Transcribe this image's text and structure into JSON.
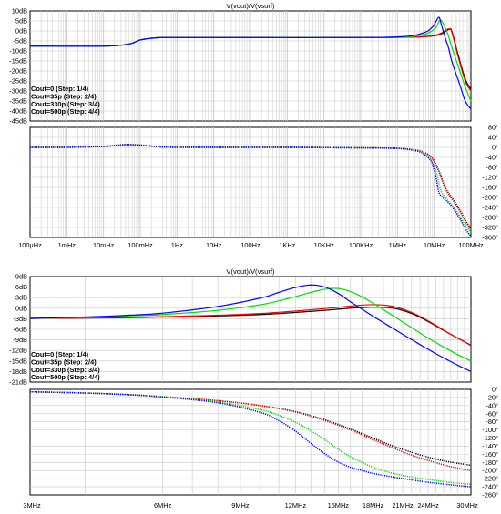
{
  "colors": {
    "trace0": "#000000",
    "trace35p": "#ff0000",
    "trace330p": "#00e000",
    "trace500p": "#0000ff",
    "grid": "#c8c8c8",
    "background": "#ffffff"
  },
  "chart_data": [
    {
      "type": "line",
      "title": "V(vout)/V(vsurf)",
      "panel": "wideband-magnitude",
      "x_scale": "log",
      "xlim": [
        "100µHz",
        "100MHz"
      ],
      "xticks": [
        "100µHz",
        "1mHz",
        "10mHz",
        "100mHz",
        "1Hz",
        "10Hz",
        "100Hz",
        "1KHz",
        "10KHz",
        "100KHz",
        "1MHz",
        "10MHz",
        "100MHz"
      ],
      "ylim": [
        -45,
        10
      ],
      "yticks": [
        "10dB",
        "5dB",
        "0dB",
        "-5dB",
        "-10dB",
        "-15dB",
        "-20dB",
        "-25dB",
        "-30dB",
        "-35dB",
        "-40dB",
        "-45dB"
      ],
      "legend_position": "bottom-left",
      "legend": [
        "Cout=0  (Step: 1/4)",
        "Cout=35p  (Step: 2/4)",
        "Cout=330p  (Step: 3/4)",
        "Cout=500p  (Step: 4/4)"
      ],
      "series": [
        {
          "name": "Cout=0  (Step: 1/4)",
          "x": [
            0.0001,
            0.01,
            0.05,
            0.1,
            0.3,
            1,
            100,
            10000,
            1000000,
            5000000,
            10000000,
            15000000,
            20000000,
            25000000,
            30000000,
            45000000,
            70000000,
            100000000
          ],
          "y": [
            -7.6,
            -7.6,
            -6.5,
            -4.5,
            -3.4,
            -3.3,
            -3.3,
            -3.3,
            -3.2,
            -2.9,
            -2.4,
            -1.6,
            -0.3,
            0.7,
            0,
            -12,
            -24,
            -29
          ]
        },
        {
          "name": "Cout=35p  (Step: 2/4)",
          "x": [
            0.0001,
            0.01,
            0.05,
            0.1,
            0.3,
            1,
            100,
            10000,
            1000000,
            5000000,
            10000000,
            15000000,
            20000000,
            25000000,
            30000000,
            45000000,
            70000000,
            100000000
          ],
          "y": [
            -7.6,
            -7.6,
            -6.5,
            -4.5,
            -3.4,
            -3.3,
            -3.3,
            -3.3,
            -3.2,
            -2.8,
            -2.2,
            -1.2,
            0.2,
            1,
            -0.5,
            -13,
            -25,
            -30
          ]
        },
        {
          "name": "Cout=330p  (Step: 3/4)",
          "x": [
            0.0001,
            0.01,
            0.05,
            0.1,
            0.3,
            1,
            100,
            10000,
            1000000,
            5000000,
            10000000,
            12000000,
            15000000,
            20000000,
            25000000,
            30000000,
            50000000,
            70000000,
            100000000
          ],
          "y": [
            -7.6,
            -7.6,
            -6.5,
            -4.5,
            -3.4,
            -3.3,
            -3.3,
            -3.3,
            -3.1,
            -1.8,
            0.8,
            2.8,
            5.5,
            1.5,
            -3,
            -8,
            -20,
            -28,
            -35
          ]
        },
        {
          "name": "Cout=500p  (Step: 4/4)",
          "x": [
            0.0001,
            0.01,
            0.05,
            0.1,
            0.3,
            1,
            100,
            10000,
            1000000,
            5000000,
            9000000,
            11000000,
            13500000,
            16000000,
            20000000,
            25000000,
            30000000,
            50000000,
            70000000,
            100000000
          ],
          "y": [
            -7.6,
            -7.6,
            -6.5,
            -4.5,
            -3.4,
            -3.3,
            -3.3,
            -3.3,
            -3,
            -1,
            2,
            4.5,
            6.8,
            2.5,
            -3.5,
            -9,
            -15,
            -27,
            -35,
            -39
          ]
        }
      ]
    },
    {
      "type": "line",
      "panel": "wideband-phase",
      "x_scale": "log",
      "xlim": [
        "100µHz",
        "100MHz"
      ],
      "ylim": [
        -360,
        80
      ],
      "yticks": [
        "80°",
        "40°",
        "0°",
        "-40°",
        "-80°",
        "-120°",
        "-160°",
        "-200°",
        "-240°",
        "-280°",
        "-320°",
        "-360°"
      ],
      "series": [
        {
          "name": "Cout=0  (Step: 1/4)",
          "x": [
            0.0001,
            0.001,
            0.01,
            0.03,
            0.05,
            0.1,
            0.3,
            1,
            1000,
            100000,
            1000000,
            3000000,
            5000000,
            8000000,
            10000000,
            14000000,
            20000000,
            30000000,
            50000000,
            70000000,
            100000000
          ],
          "y": [
            0,
            0.3,
            4,
            10,
            11,
            9,
            3,
            0.5,
            0,
            -2,
            -4,
            -10,
            -18,
            -35,
            -55,
            -100,
            -160,
            -200,
            -250,
            -290,
            -325
          ]
        },
        {
          "name": "Cout=35p  (Step: 2/4)",
          "x": [
            0.0001,
            0.001,
            0.01,
            0.03,
            0.05,
            0.1,
            0.3,
            1,
            1000,
            100000,
            1000000,
            3000000,
            5000000,
            8000000,
            10000000,
            14000000,
            20000000,
            30000000,
            50000000,
            70000000,
            100000000
          ],
          "y": [
            0,
            0.3,
            4,
            10,
            11,
            9,
            3,
            0.5,
            0,
            -2,
            -4,
            -10,
            -18,
            -36,
            -58,
            -105,
            -165,
            -205,
            -255,
            -295,
            -330
          ]
        },
        {
          "name": "Cout=330p  (Step: 3/4)",
          "x": [
            0.0001,
            0.001,
            0.01,
            0.03,
            0.05,
            0.1,
            0.3,
            1,
            1000,
            100000,
            1000000,
            3000000,
            5000000,
            8000000,
            10000000,
            12000000,
            15000000,
            20000000,
            30000000,
            50000000,
            70000000,
            100000000
          ],
          "y": [
            0,
            0.3,
            4,
            10,
            11,
            9,
            3,
            0.5,
            0,
            -2,
            -4,
            -12,
            -22,
            -45,
            -75,
            -110,
            -170,
            -200,
            -230,
            -275,
            -310,
            -340
          ]
        },
        {
          "name": "Cout=500p  (Step: 4/4)",
          "x": [
            0.0001,
            0.001,
            0.01,
            0.03,
            0.05,
            0.1,
            0.3,
            1,
            1000,
            100000,
            1000000,
            3000000,
            5000000,
            8000000,
            10000000,
            11500000,
            13500000,
            17000000,
            22000000,
            30000000,
            50000000,
            70000000,
            100000000
          ],
          "y": [
            0,
            0.3,
            4,
            10,
            11,
            9,
            3,
            0.5,
            0,
            -2,
            -4,
            -13,
            -25,
            -52,
            -90,
            -130,
            -180,
            -200,
            -215,
            -235,
            -285,
            -325,
            -355
          ]
        }
      ]
    },
    {
      "type": "line",
      "title": "V(vout)/V(vsurf)",
      "panel": "zoom-magnitude",
      "x_scale": "log",
      "xlim": [
        "3MHz",
        "30MHz"
      ],
      "xticks": [
        "3MHz",
        "6MHz",
        "9MHz",
        "12MHz",
        "15MHz",
        "18MHz",
        "21MHz",
        "24MHz",
        "30MHz"
      ],
      "ylim": [
        -21,
        9
      ],
      "yticks": [
        "9dB",
        "6dB",
        "3dB",
        "0dB",
        "-3dB",
        "-6dB",
        "-9dB",
        "-12dB",
        "-15dB",
        "-18dB",
        "-21dB"
      ],
      "legend_position": "bottom-left",
      "legend": [
        "Cout=0  (Step: 1/4)",
        "Cout=35p  (Step: 2/4)",
        "Cout=330p  (Step: 3/4)",
        "Cout=500p  (Step: 4/4)"
      ],
      "series": [
        {
          "name": "Cout=0  (Step: 1/4)",
          "x": [
            3,
            4,
            5,
            6,
            8,
            10,
            12,
            14,
            16,
            18,
            20,
            22,
            24,
            26,
            28,
            30
          ],
          "y": [
            -2.9,
            -2.8,
            -2.7,
            -2.5,
            -2.2,
            -1.8,
            -1.2,
            -0.6,
            0,
            0.3,
            0,
            -1.5,
            -3.8,
            -6.3,
            -8.5,
            -10.5
          ]
        },
        {
          "name": "Cout=35p  (Step: 2/4)",
          "x": [
            3,
            4,
            5,
            6,
            8,
            10,
            12,
            14,
            16,
            18,
            20,
            22,
            24,
            26,
            28,
            30
          ],
          "y": [
            -2.9,
            -2.8,
            -2.6,
            -2.4,
            -2,
            -1.5,
            -0.8,
            -0.1,
            0.6,
            1,
            0.5,
            -1.2,
            -3.6,
            -6.2,
            -8.5,
            -10.6
          ]
        },
        {
          "name": "Cout=330p  (Step: 3/4)",
          "x": [
            3,
            4,
            5,
            6,
            8,
            10,
            11,
            12,
            13,
            14,
            15,
            16,
            17,
            18,
            20,
            22,
            24,
            26,
            28,
            30
          ],
          "y": [
            -2.9,
            -2.6,
            -2.2,
            -1.8,
            -0.6,
            1,
            2.1,
            3.3,
            4.5,
            5.4,
            5.6,
            4.7,
            3.2,
            1.4,
            -2.2,
            -5.5,
            -8.5,
            -11,
            -13.2,
            -15
          ]
        },
        {
          "name": "Cout=500p  (Step: 4/4)",
          "x": [
            3,
            4,
            5,
            6,
            8,
            10,
            11,
            12,
            13,
            14,
            15,
            16,
            17,
            18,
            20,
            22,
            24,
            26,
            28,
            30
          ],
          "y": [
            -2.9,
            -2.5,
            -2,
            -1.4,
            0.5,
            2.9,
            4.5,
            5.9,
            6.6,
            6,
            4.2,
            1.8,
            -0.3,
            -2.3,
            -5.8,
            -8.9,
            -11.7,
            -14.1,
            -16.2,
            -18
          ]
        }
      ]
    },
    {
      "type": "line",
      "panel": "zoom-phase",
      "x_scale": "log",
      "xlim": [
        "3MHz",
        "30MHz"
      ],
      "ylim": [
        -260,
        0
      ],
      "yticks": [
        "0°",
        "-20°",
        "-40°",
        "-60°",
        "-80°",
        "-100°",
        "-120°",
        "-140°",
        "-160°",
        "-180°",
        "-200°",
        "-220°",
        "-240°",
        "-260°"
      ],
      "series": [
        {
          "name": "Cout=0  (Step: 1/4)",
          "x": [
            3,
            4,
            5,
            6,
            8,
            10,
            12,
            14,
            16,
            18,
            20,
            22,
            24,
            26,
            28,
            30
          ],
          "y": [
            -6,
            -9,
            -13,
            -18,
            -28,
            -40,
            -55,
            -75,
            -98,
            -120,
            -140,
            -155,
            -167,
            -176,
            -182,
            -187
          ]
        },
        {
          "name": "Cout=35p  (Step: 2/4)",
          "x": [
            3,
            4,
            5,
            6,
            8,
            10,
            12,
            14,
            16,
            18,
            20,
            22,
            24,
            26,
            28,
            30
          ],
          "y": [
            -6,
            -9,
            -13,
            -18,
            -28,
            -40,
            -56,
            -77,
            -100,
            -124,
            -145,
            -162,
            -175,
            -186,
            -194,
            -200
          ]
        },
        {
          "name": "Cout=330p  (Step: 3/4)",
          "x": [
            3,
            4,
            5,
            6,
            8,
            10,
            11,
            12,
            13,
            14,
            15,
            16,
            17,
            18,
            20,
            22,
            24,
            26,
            28,
            30
          ],
          "y": [
            -6,
            -9,
            -13,
            -18,
            -31,
            -50,
            -64,
            -81,
            -102,
            -124,
            -148,
            -166,
            -180,
            -192,
            -207,
            -216,
            -222,
            -227,
            -231,
            -234
          ]
        },
        {
          "name": "Cout=500p  (Step: 4/4)",
          "x": [
            3,
            4,
            5,
            6,
            8,
            10,
            11,
            12,
            13,
            14,
            15,
            16,
            17,
            18,
            20,
            22,
            24,
            26,
            28,
            30
          ],
          "y": [
            -6,
            -9,
            -13,
            -19,
            -33,
            -57,
            -77,
            -103,
            -133,
            -159,
            -179,
            -192,
            -200,
            -207,
            -216,
            -223,
            -229,
            -233,
            -237,
            -240
          ]
        }
      ]
    }
  ]
}
